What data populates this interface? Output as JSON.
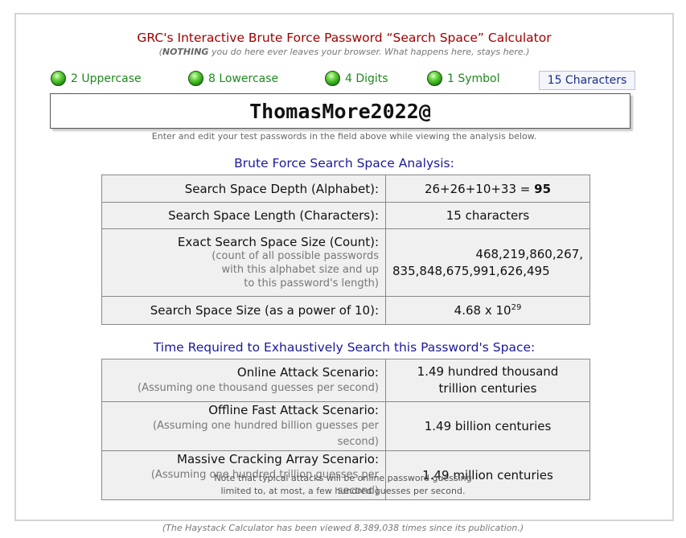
{
  "header": {
    "title": "GRC's Interactive Brute Force Password “Search Space” Calculator",
    "subtitle_open": "(",
    "subtitle_bold": "NOTHING",
    "subtitle_rest": " you do here ever leaves your browser. What happens here, stays here.)"
  },
  "indicators": [
    {
      "label": "2 Uppercase",
      "icon": "green-light-icon"
    },
    {
      "label": "8 Lowercase",
      "icon": "green-light-icon"
    },
    {
      "label": "4 Digits",
      "icon": "green-light-icon"
    },
    {
      "label": "1 Symbol",
      "icon": "green-light-icon"
    }
  ],
  "char_count": "15 Characters",
  "password": {
    "value": "ThomasMore2022@"
  },
  "hint": "Enter and edit your test passwords in the field above while viewing the analysis below.",
  "analysis": {
    "heading": "Brute Force Search Space Analysis:",
    "depth_label": "Search Space Depth (Alphabet):",
    "depth_expr": "26+26+10+33 = ",
    "depth_total": "95",
    "length_label": "Search Space Length (Characters):",
    "length_value": "15 characters",
    "size_label": "Exact Search Space Size (Count):",
    "size_note_1": "(count of all possible passwords",
    "size_note_2": "with this alphabet size and up",
    "size_note_3": "to this password's length)",
    "size_value_1": "468,219,860,267,",
    "size_value_2": "835,848,675,991,626,495",
    "power_label": "Search Space Size (as a power of 10):",
    "power_base": "4.68 x 10",
    "power_exp": "29"
  },
  "time": {
    "heading": "Time Required to Exhaustively Search this Password's Space:",
    "online_label": "Online Attack Scenario:",
    "online_note": "(Assuming one thousand guesses per second)",
    "online_value_1": "1.49 hundred thousand",
    "online_value_2": "trillion centuries",
    "offline_label": "Offline Fast Attack Scenario:",
    "offline_note": "(Assuming one hundred billion guesses per second)",
    "offline_value": "1.49 billion centuries",
    "massive_label": "Massive Cracking Array Scenario:",
    "massive_note": "(Assuming one hundred trillion guesses per second)",
    "massive_value": "1.49 million centuries"
  },
  "note_line_1": "Note that typical attacks will be online password guessing",
  "note_line_2": "limited to, at most, a few hundred guesses per second.",
  "footer": "(The Haystack Calculator has been viewed 8,389,038 times since its publication.)"
}
